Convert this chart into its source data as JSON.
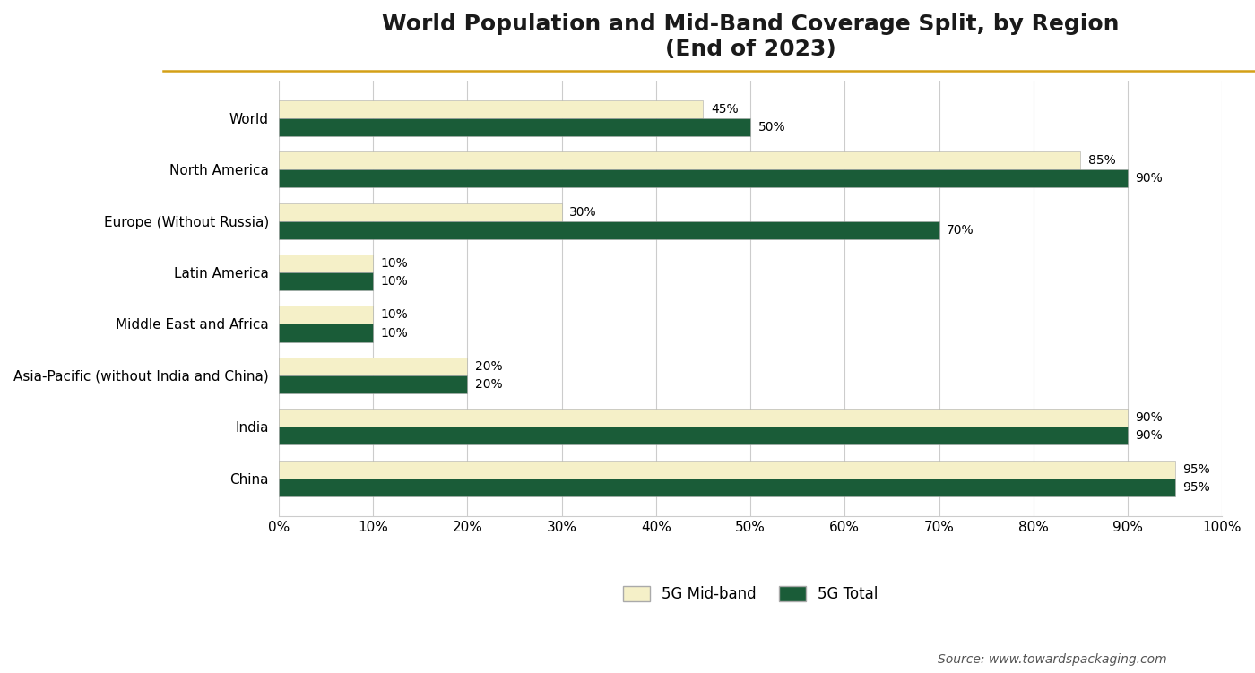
{
  "title": "World Population and Mid-Band Coverage Split, by Region\n(End of 2023)",
  "categories": [
    "World",
    "North America",
    "Europe (Without Russia)",
    "Latin America",
    "Middle East and Africa",
    "Asia-Pacific (without India and China)",
    "India",
    "China"
  ],
  "midband_values": [
    45,
    85,
    30,
    10,
    10,
    20,
    90,
    95
  ],
  "total_values": [
    50,
    90,
    70,
    10,
    10,
    20,
    90,
    95
  ],
  "midband_color": "#F5F0C8",
  "total_color": "#1A5C38",
  "bar_height": 0.35,
  "xlim": [
    0,
    100
  ],
  "xtick_vals": [
    0,
    10,
    20,
    30,
    40,
    50,
    60,
    70,
    80,
    90,
    100
  ],
  "xtick_labels": [
    "0%",
    "10%",
    "20%",
    "30%",
    "40%",
    "50%",
    "60%",
    "70%",
    "80%",
    "90%",
    "100%"
  ],
  "legend_midband": "5G Mid-band",
  "legend_total": "5G Total",
  "source_text": "Source: www.towardspackaging.com",
  "background_color": "#FFFFFF",
  "grid_color": "#CCCCCC",
  "title_fontsize": 18,
  "label_fontsize": 11,
  "tick_fontsize": 11,
  "annotation_fontsize": 10,
  "legend_fontsize": 12,
  "source_fontsize": 10,
  "bar_edge_color": "#AAAAAA",
  "gold_line_color": "#D4A017"
}
